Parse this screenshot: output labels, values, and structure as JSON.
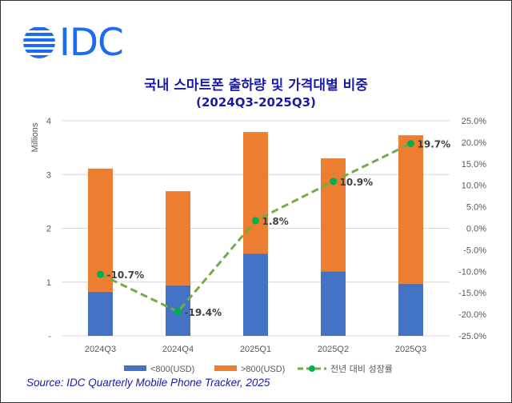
{
  "logo": {
    "text": "IDC",
    "color": "#1a6cf5"
  },
  "chart_data": {
    "type": "bar",
    "stacked": true,
    "title": "국내 스마트폰 출하량 및 가격대별 비중",
    "subtitle": "(2024Q3-2025Q3)",
    "categories": [
      "2024Q3",
      "2024Q4",
      "2025Q1",
      "2025Q2",
      "2025Q3"
    ],
    "ylabel": "Millions",
    "ylim": [
      0,
      4
    ],
    "yticks": [
      "-",
      "1",
      "2",
      "3",
      "4"
    ],
    "y2lim": [
      -25,
      25
    ],
    "y2ticks": [
      "-25.0%",
      "-20.0%",
      "-15.0%",
      "-10.0%",
      "-5.0%",
      "0.0%",
      "5.0%",
      "10.0%",
      "15.0%",
      "20.0%",
      "25.0%"
    ],
    "grid": true,
    "legend": "bottom",
    "series": [
      {
        "name": "<800(USD)",
        "type": "bar",
        "color": "#4472c4",
        "values": [
          0.82,
          0.94,
          1.53,
          1.2,
          0.97
        ]
      },
      {
        "name": ">800(USD)",
        "type": "bar",
        "color": "#ed7d31",
        "values": [
          2.29,
          1.75,
          2.26,
          2.1,
          2.76
        ]
      },
      {
        "name": "전년 대비 성장률",
        "type": "line",
        "axis": "right",
        "color": "#70ad47",
        "marker_color": "#00b050",
        "values": [
          -10.7,
          -19.4,
          1.8,
          10.9,
          19.7
        ],
        "labels": [
          "-10.7%",
          "-19.4%",
          "1.8%",
          "10.9%",
          "19.7%"
        ]
      }
    ]
  },
  "source": "Source: IDC Quarterly Mobile Phone Tracker, 2025"
}
